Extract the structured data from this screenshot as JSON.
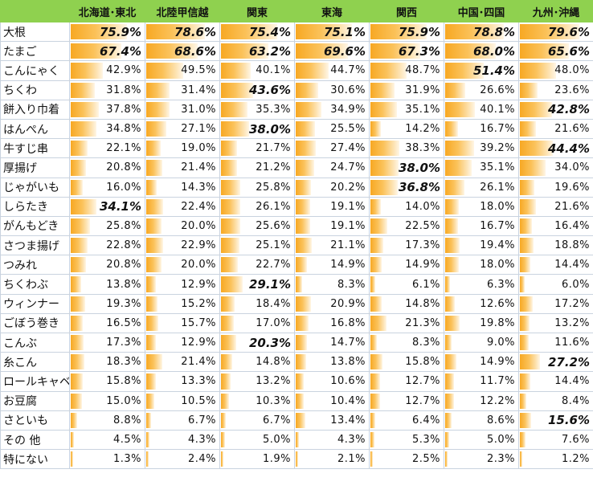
{
  "table": {
    "columns": [
      "北海道･東北",
      "北陸甲信越",
      "関東",
      "東海",
      "関西",
      "中国･四国",
      "九州･沖縄"
    ],
    "rows": [
      {
        "label": "大根",
        "values": [
          "75.9%",
          "78.6%",
          "75.4%",
          "75.1%",
          "75.9%",
          "78.8%",
          "79.6%"
        ],
        "highlight": [
          1,
          1,
          1,
          1,
          1,
          1,
          1
        ]
      },
      {
        "label": "たまご",
        "values": [
          "67.4%",
          "68.6%",
          "63.2%",
          "69.6%",
          "67.3%",
          "68.0%",
          "65.6%"
        ],
        "highlight": [
          1,
          1,
          1,
          1,
          1,
          1,
          1
        ]
      },
      {
        "label": "こんにゃく",
        "values": [
          "42.9%",
          "49.5%",
          "40.1%",
          "44.7%",
          "48.7%",
          "51.4%",
          "48.0%"
        ],
        "highlight": [
          0,
          0,
          0,
          0,
          0,
          1,
          0
        ]
      },
      {
        "label": "ちくわ",
        "values": [
          "31.8%",
          "31.4%",
          "43.6%",
          "30.6%",
          "31.9%",
          "26.6%",
          "23.6%"
        ],
        "highlight": [
          0,
          0,
          1,
          0,
          0,
          0,
          0
        ]
      },
      {
        "label": "餅入り巾着",
        "values": [
          "37.8%",
          "31.0%",
          "35.3%",
          "34.9%",
          "35.1%",
          "40.1%",
          "42.8%"
        ],
        "highlight": [
          0,
          0,
          0,
          0,
          0,
          0,
          1
        ]
      },
      {
        "label": "はんぺん",
        "values": [
          "34.8%",
          "27.1%",
          "38.0%",
          "25.5%",
          "14.2%",
          "16.7%",
          "21.6%"
        ],
        "highlight": [
          0,
          0,
          1,
          0,
          0,
          0,
          0
        ]
      },
      {
        "label": "牛すじ串",
        "values": [
          "22.1%",
          "19.0%",
          "21.7%",
          "27.4%",
          "38.3%",
          "39.2%",
          "44.4%"
        ],
        "highlight": [
          0,
          0,
          0,
          0,
          0,
          0,
          1
        ]
      },
      {
        "label": "厚揚げ",
        "values": [
          "20.8%",
          "21.4%",
          "21.2%",
          "24.7%",
          "38.0%",
          "35.1%",
          "34.0%"
        ],
        "highlight": [
          0,
          0,
          0,
          0,
          1,
          0,
          0
        ]
      },
      {
        "label": "じゃがいも",
        "values": [
          "16.0%",
          "14.3%",
          "25.8%",
          "20.2%",
          "36.8%",
          "26.1%",
          "19.6%"
        ],
        "highlight": [
          0,
          0,
          0,
          0,
          1,
          0,
          0
        ]
      },
      {
        "label": "しらたき",
        "values": [
          "34.1%",
          "22.4%",
          "26.1%",
          "19.1%",
          "14.0%",
          "18.0%",
          "21.6%"
        ],
        "highlight": [
          1,
          0,
          0,
          0,
          0,
          0,
          0
        ]
      },
      {
        "label": "がんもどき",
        "values": [
          "25.8%",
          "20.0%",
          "25.6%",
          "19.1%",
          "22.5%",
          "16.7%",
          "16.4%"
        ],
        "highlight": [
          0,
          0,
          0,
          0,
          0,
          0,
          0
        ]
      },
      {
        "label": "さつま揚げ",
        "values": [
          "22.8%",
          "22.9%",
          "25.1%",
          "21.1%",
          "17.3%",
          "19.4%",
          "18.8%"
        ],
        "highlight": [
          0,
          0,
          0,
          0,
          0,
          0,
          0
        ]
      },
      {
        "label": "つみれ",
        "values": [
          "20.8%",
          "20.0%",
          "22.7%",
          "14.9%",
          "14.9%",
          "18.0%",
          "14.4%"
        ],
        "highlight": [
          0,
          0,
          0,
          0,
          0,
          0,
          0
        ]
      },
      {
        "label": "ちくわぶ",
        "values": [
          "13.8%",
          "12.9%",
          "29.1%",
          "8.3%",
          "6.1%",
          "6.3%",
          "6.0%"
        ],
        "highlight": [
          0,
          0,
          1,
          0,
          0,
          0,
          0
        ]
      },
      {
        "label": "ウィンナー",
        "values": [
          "19.3%",
          "15.2%",
          "18.4%",
          "20.9%",
          "14.8%",
          "12.6%",
          "17.2%"
        ],
        "highlight": [
          0,
          0,
          0,
          0,
          0,
          0,
          0
        ]
      },
      {
        "label": "ごぼう巻き",
        "values": [
          "16.5%",
          "15.7%",
          "17.0%",
          "16.8%",
          "21.3%",
          "19.8%",
          "13.2%"
        ],
        "highlight": [
          0,
          0,
          0,
          0,
          0,
          0,
          0
        ]
      },
      {
        "label": "こんぶ",
        "values": [
          "17.3%",
          "12.9%",
          "20.3%",
          "14.7%",
          "8.3%",
          "9.0%",
          "11.6%"
        ],
        "highlight": [
          0,
          0,
          1,
          0,
          0,
          0,
          0
        ]
      },
      {
        "label": "糸こん",
        "values": [
          "18.3%",
          "21.4%",
          "14.8%",
          "13.8%",
          "15.8%",
          "14.9%",
          "27.2%"
        ],
        "highlight": [
          0,
          0,
          0,
          0,
          0,
          0,
          1
        ]
      },
      {
        "label": "ロールキャベ",
        "values": [
          "15.8%",
          "13.3%",
          "13.2%",
          "10.6%",
          "12.7%",
          "11.7%",
          "14.4%"
        ],
        "highlight": [
          0,
          0,
          0,
          0,
          0,
          0,
          0
        ]
      },
      {
        "label": "お豆腐",
        "values": [
          "15.0%",
          "10.5%",
          "10.3%",
          "10.4%",
          "12.7%",
          "12.2%",
          "8.4%"
        ],
        "highlight": [
          0,
          0,
          0,
          0,
          0,
          0,
          0
        ]
      },
      {
        "label": "さといも",
        "values": [
          "8.8%",
          "6.7%",
          "6.7%",
          "13.4%",
          "6.4%",
          "8.6%",
          "15.6%"
        ],
        "highlight": [
          0,
          0,
          0,
          0,
          0,
          0,
          1
        ]
      },
      {
        "label": "その 他",
        "values": [
          "4.5%",
          "4.3%",
          "5.0%",
          "4.3%",
          "5.3%",
          "5.0%",
          "7.6%"
        ],
        "highlight": [
          0,
          0,
          0,
          0,
          0,
          0,
          0
        ]
      },
      {
        "label": "特にない",
        "values": [
          "1.3%",
          "2.4%",
          "1.9%",
          "2.1%",
          "2.5%",
          "2.3%",
          "1.2%"
        ],
        "highlight": [
          0,
          0,
          0,
          0,
          0,
          0,
          0
        ]
      }
    ]
  },
  "colors": {
    "header_bg": "#8fd14f",
    "bar_start": "#f7a823",
    "bar_end": "#fff6e6",
    "grid": "#c9d3df"
  },
  "chart_data": {
    "type": "table",
    "title": "",
    "categories": [
      "大根",
      "たまご",
      "こんにゃく",
      "ちくわ",
      "餅入り巾着",
      "はんぺん",
      "牛すじ串",
      "厚揚げ",
      "じゃがいも",
      "しらたき",
      "がんもどき",
      "さつま揚げ",
      "つみれ",
      "ちくわぶ",
      "ウィンナー",
      "ごぼう巻き",
      "こんぶ",
      "糸こん",
      "ロールキャベ",
      "お豆腐",
      "さといも",
      "その 他",
      "特にない"
    ],
    "series": [
      {
        "name": "北海道･東北",
        "values": [
          75.9,
          67.4,
          42.9,
          31.8,
          37.8,
          34.8,
          22.1,
          20.8,
          16.0,
          34.1,
          25.8,
          22.8,
          20.8,
          13.8,
          19.3,
          16.5,
          17.3,
          18.3,
          15.8,
          15.0,
          8.8,
          4.5,
          1.3
        ]
      },
      {
        "name": "北陸甲信越",
        "values": [
          78.6,
          68.6,
          49.5,
          31.4,
          31.0,
          27.1,
          19.0,
          21.4,
          14.3,
          22.4,
          20.0,
          22.9,
          20.0,
          12.9,
          15.2,
          15.7,
          12.9,
          21.4,
          13.3,
          10.5,
          6.7,
          4.3,
          2.4
        ]
      },
      {
        "name": "関東",
        "values": [
          75.4,
          63.2,
          40.1,
          43.6,
          35.3,
          38.0,
          21.7,
          21.2,
          25.8,
          26.1,
          25.6,
          25.1,
          22.7,
          29.1,
          18.4,
          17.0,
          20.3,
          14.8,
          13.2,
          10.3,
          6.7,
          5.0,
          1.9
        ]
      },
      {
        "name": "東海",
        "values": [
          75.1,
          69.6,
          44.7,
          30.6,
          34.9,
          25.5,
          27.4,
          24.7,
          20.2,
          19.1,
          19.1,
          21.1,
          14.9,
          8.3,
          20.9,
          16.8,
          14.7,
          13.8,
          10.6,
          10.4,
          13.4,
          4.3,
          2.1
        ]
      },
      {
        "name": "関西",
        "values": [
          75.9,
          67.3,
          48.7,
          31.9,
          35.1,
          14.2,
          38.3,
          38.0,
          36.8,
          14.0,
          22.5,
          17.3,
          14.9,
          6.1,
          14.8,
          21.3,
          8.3,
          15.8,
          12.7,
          12.7,
          6.4,
          5.3,
          2.5
        ]
      },
      {
        "name": "中国･四国",
        "values": [
          78.8,
          68.0,
          51.4,
          26.6,
          40.1,
          16.7,
          39.2,
          35.1,
          26.1,
          18.0,
          16.7,
          19.4,
          18.0,
          6.3,
          12.6,
          19.8,
          9.0,
          14.9,
          11.7,
          12.2,
          8.6,
          5.0,
          2.3
        ]
      },
      {
        "name": "九州･沖縄",
        "values": [
          79.6,
          65.6,
          48.0,
          23.6,
          42.8,
          21.6,
          44.4,
          34.0,
          19.6,
          21.6,
          16.4,
          18.8,
          14.4,
          6.0,
          17.2,
          13.2,
          11.6,
          27.2,
          14.4,
          8.4,
          15.6,
          7.6,
          1.2
        ]
      }
    ],
    "unit": "%",
    "legend_position": "none",
    "grid": true
  }
}
